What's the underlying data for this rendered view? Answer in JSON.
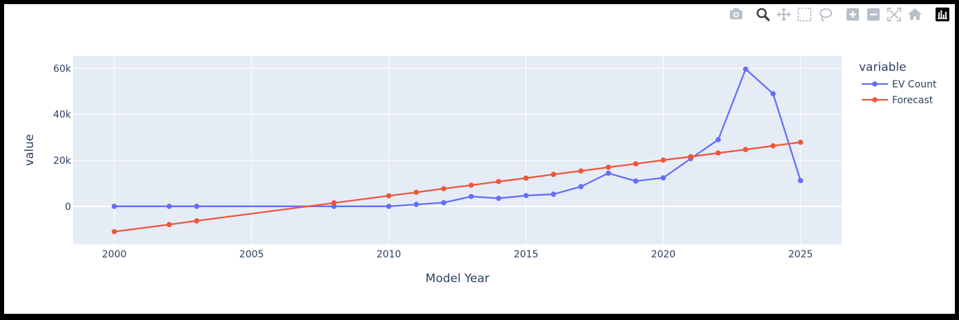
{
  "toolbar": {
    "buttons": [
      {
        "name": "camera-icon",
        "title": "Download plot as a png"
      },
      {
        "name": "zoom-icon",
        "title": "Zoom"
      },
      {
        "name": "pan-icon",
        "title": "Pan"
      },
      {
        "name": "box-select-icon",
        "title": "Box Select"
      },
      {
        "name": "lasso-select-icon",
        "title": "Lasso Select"
      },
      {
        "name": "zoom-in-icon",
        "title": "Zoom in"
      },
      {
        "name": "zoom-out-icon",
        "title": "Zoom out"
      },
      {
        "name": "autoscale-icon",
        "title": "Autoscale"
      },
      {
        "name": "reset-axes-icon",
        "title": "Reset axes"
      },
      {
        "name": "plotly-logo-icon",
        "title": "Produced with Plotly"
      }
    ],
    "active": "zoom-icon"
  },
  "colors": {
    "plot_bg": "#e5ecf6",
    "grid": "#ffffff",
    "text": "#2a3f5f",
    "ev_count": "#636efa",
    "forecast": "#ef553b"
  },
  "chart_data": {
    "type": "line",
    "xlabel": "Model Year",
    "ylabel": "value",
    "xlim": [
      1998.5,
      2026.5
    ],
    "ylim": [
      -16500,
      65500
    ],
    "x_ticks": [
      2000,
      2005,
      2010,
      2015,
      2020,
      2025
    ],
    "y_ticks": [
      0,
      20000,
      40000,
      60000
    ],
    "y_tick_labels": [
      "0",
      "20k",
      "40k",
      "60k"
    ],
    "grid": true,
    "legend": {
      "title": "variable",
      "placement": "right"
    },
    "series": [
      {
        "name": "EV Count",
        "x": [
          2000,
          2002,
          2003,
          2008,
          2010,
          2011,
          2012,
          2013,
          2014,
          2015,
          2016,
          2017,
          2018,
          2019,
          2020,
          2021,
          2022,
          2023,
          2024,
          2025
        ],
        "y": [
          7,
          5,
          9,
          19,
          29,
          840,
          1600,
          4300,
          3500,
          4700,
          5300,
          8600,
          14400,
          11000,
          12400,
          20800,
          29000,
          59700,
          49000,
          11200
        ]
      },
      {
        "name": "Forecast",
        "x": [
          2000,
          2002,
          2003,
          2008,
          2010,
          2011,
          2012,
          2013,
          2014,
          2015,
          2016,
          2017,
          2018,
          2019,
          2020,
          2021,
          2022,
          2023,
          2024,
          2025
        ],
        "y": [
          -11000,
          -7900,
          -6300,
          1500,
          4600,
          6100,
          7700,
          9200,
          10800,
          12300,
          13900,
          15400,
          17000,
          18500,
          20100,
          21600,
          23200,
          24700,
          26300,
          27900
        ]
      }
    ]
  }
}
